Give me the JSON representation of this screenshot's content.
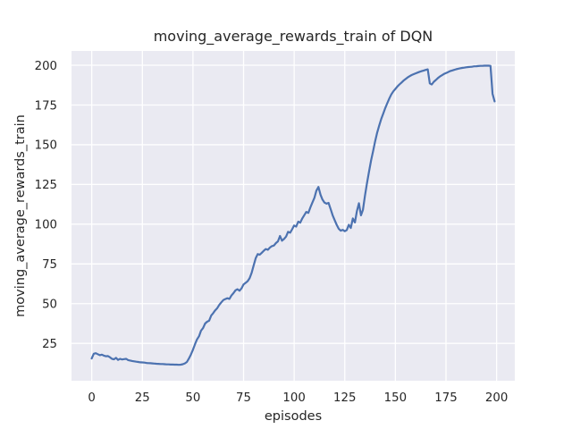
{
  "colors": {
    "figure_bg": "#ffffff",
    "axes_bg": "#eaeaf2",
    "grid": "#ffffff",
    "line": "#4c72b0",
    "text": "#262626"
  },
  "chart_data": {
    "type": "line",
    "title": "moving_average_rewards_train of DQN",
    "xlabel": "episodes",
    "ylabel": "moving_average_rewards_train",
    "legend": null,
    "grid": true,
    "xlim": [
      -10,
      209
    ],
    "ylim": [
      1.5,
      209
    ],
    "xticks": [
      0,
      25,
      50,
      75,
      100,
      125,
      150,
      175,
      200
    ],
    "yticks": [
      25,
      50,
      75,
      100,
      125,
      150,
      175,
      200
    ],
    "series": [
      {
        "name": "moving_average_rewards_train",
        "color": "#4c72b0",
        "x": {
          "start": 0,
          "step": 1,
          "end": 199
        },
        "values": [
          15.5,
          18.5,
          18.8,
          18.2,
          17.6,
          17.9,
          17.3,
          16.9,
          17.0,
          16.3,
          15.3,
          15.0,
          15.9,
          14.6,
          15.3,
          14.9,
          15.1,
          15.3,
          14.5,
          14.2,
          13.9,
          13.7,
          13.5,
          13.3,
          13.1,
          13.0,
          12.9,
          12.7,
          12.6,
          12.5,
          12.4,
          12.3,
          12.2,
          12.1,
          12.0,
          12.0,
          11.9,
          11.8,
          11.8,
          11.7,
          11.7,
          11.6,
          11.6,
          11.5,
          11.6,
          11.9,
          12.4,
          13.3,
          15.5,
          18.0,
          21.0,
          24.5,
          27.5,
          29.5,
          33.0,
          34.6,
          37.5,
          38.6,
          39.3,
          42.5,
          44.0,
          45.8,
          47.2,
          49.2,
          50.8,
          52.3,
          52.9,
          53.4,
          53.0,
          55.1,
          56.6,
          58.4,
          59.1,
          58.1,
          59.6,
          62.1,
          63.1,
          64.1,
          66.0,
          69.5,
          74.0,
          78.6,
          81.2,
          80.8,
          82.0,
          83.3,
          84.4,
          83.9,
          85.3,
          86.2,
          86.6,
          88.1,
          89.2,
          92.6,
          89.6,
          90.7,
          92.2,
          95.2,
          94.6,
          96.8,
          99.2,
          98.5,
          101.6,
          100.9,
          103.6,
          105.7,
          107.7,
          107.1,
          110.6,
          113.6,
          116.6,
          121.1,
          123.4,
          118.6,
          115.5,
          113.6,
          112.9,
          113.4,
          109.6,
          105.6,
          102.6,
          99.6,
          97.1,
          95.9,
          96.4,
          95.6,
          96.3,
          99.6,
          97.6,
          103.6,
          101.1,
          108.1,
          113.2,
          105.6,
          109.1,
          118.1,
          126.1,
          133.1,
          140.1,
          146.1,
          152.1,
          157.6,
          162.1,
          166.1,
          169.6,
          173.1,
          176.1,
          179.1,
          181.6,
          183.6,
          185.1,
          186.6,
          187.9,
          189.1,
          190.3,
          191.3,
          192.3,
          193.1,
          193.8,
          194.4,
          194.9,
          195.4,
          195.9,
          196.3,
          196.7,
          197.1,
          197.4,
          188.6,
          187.9,
          189.6,
          190.7,
          191.9,
          192.9,
          193.7,
          194.5,
          195.1,
          195.7,
          196.3,
          196.7,
          197.1,
          197.5,
          197.8,
          198.1,
          198.3,
          198.5,
          198.7,
          198.9,
          199.0,
          199.1,
          199.3,
          199.4,
          199.5,
          199.6,
          199.6,
          199.7,
          199.7,
          199.7,
          199.6,
          182.0,
          177.3
        ]
      }
    ]
  }
}
